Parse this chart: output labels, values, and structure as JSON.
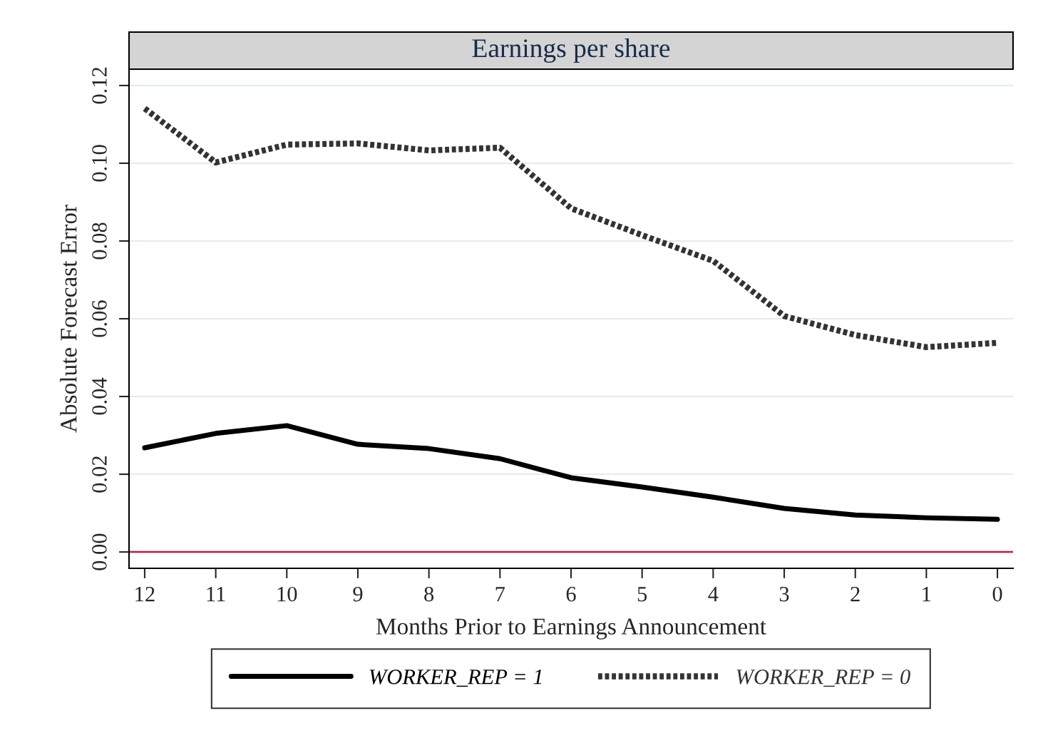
{
  "chart_data": {
    "type": "line",
    "title": "Earnings per share",
    "xlabel": "Months Prior to Earnings Announcement",
    "ylabel": "Absolute Forecast Error",
    "x": [
      12,
      11,
      10,
      9,
      8,
      7,
      6,
      5,
      4,
      3,
      2,
      1,
      0
    ],
    "series": [
      {
        "name": "WORKER_REP = 1",
        "color": "#000000",
        "line_style": "solid",
        "values": [
          0.0268,
          0.0305,
          0.0325,
          0.0277,
          0.0266,
          0.024,
          0.0191,
          0.0167,
          0.0141,
          0.0112,
          0.0095,
          0.0088,
          0.0084
        ]
      },
      {
        "name": "WORKER_REP = 0",
        "color": "#333333",
        "line_style": "dotted",
        "values": [
          0.1141,
          0.1002,
          0.1048,
          0.1051,
          0.1033,
          0.104,
          0.0884,
          0.0815,
          0.0749,
          0.0607,
          0.0558,
          0.0527,
          0.0538
        ]
      }
    ],
    "xlim": [
      12.22,
      -0.22
    ],
    "xticks": [
      12,
      11,
      10,
      9,
      8,
      7,
      6,
      5,
      4,
      3,
      2,
      1,
      0
    ],
    "ylim": [
      -0.0042,
      0.1242
    ],
    "yticks": [
      {
        "value": 0,
        "label": "0.00"
      },
      {
        "value": 0.02,
        "label": "0.02"
      },
      {
        "value": 0.04,
        "label": "0.04"
      },
      {
        "value": 0.06,
        "label": "0.06"
      },
      {
        "value": 0.08,
        "label": "0.08"
      },
      {
        "value": 0.1,
        "label": "0.10"
      },
      {
        "value": 0.12,
        "label": "0.12"
      }
    ],
    "grid": "y",
    "legend": "bottom",
    "marker": "none",
    "ref_lines": [
      {
        "axis": "y",
        "value": 0,
        "color": "#c8174a"
      }
    ]
  }
}
